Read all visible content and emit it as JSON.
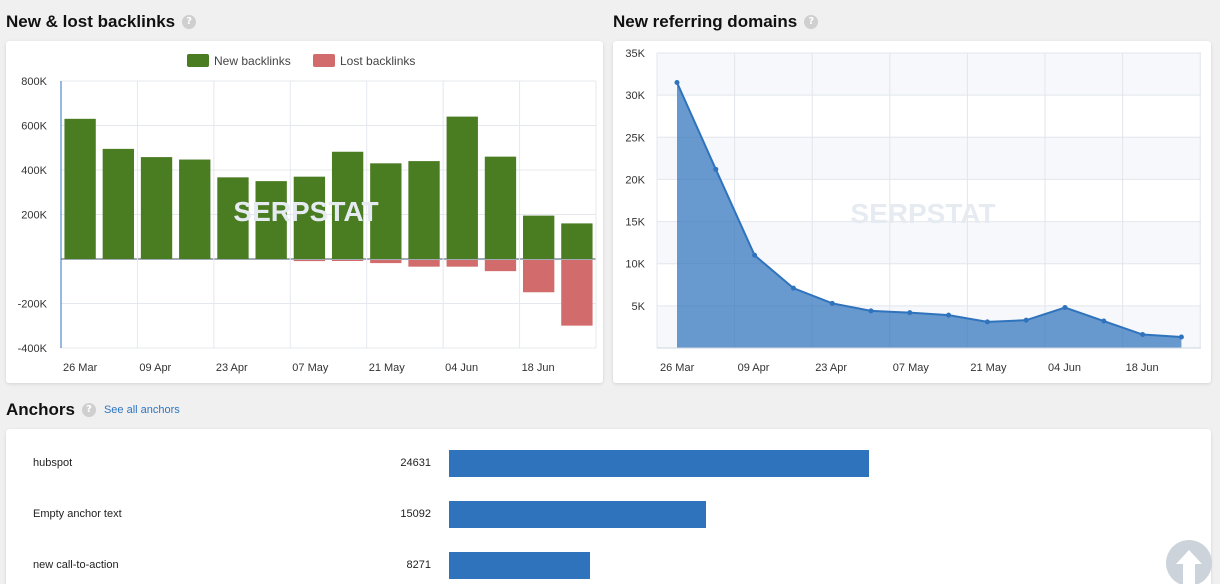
{
  "backlinks": {
    "title": "New & lost backlinks",
    "help_icon": "?",
    "legend_new": "New backlinks",
    "legend_lost": "Lost backlinks",
    "colors": {
      "new": "#4a7c22",
      "lost": "#d26b6b"
    }
  },
  "referring": {
    "title": "New referring domains",
    "help_icon": "?",
    "color": "#2f73bd"
  },
  "watermark": "SERPSTAT",
  "anchors": {
    "title": "Anchors",
    "help_icon": "?",
    "see_all": "See all anchors",
    "max": 24631,
    "items": [
      {
        "label": "hubspot",
        "count": "24631",
        "value": 24631
      },
      {
        "label": "Empty anchor text",
        "count": "15092",
        "value": 15092
      },
      {
        "label": "new call-to-action",
        "count": "8271",
        "value": 8271
      }
    ],
    "bar_color": "#2f73bd"
  },
  "scroll_top_icon": "arrow-up-icon",
  "chart_data": [
    {
      "type": "bar",
      "title": "New & lost backlinks",
      "categories": [
        "26 Mar",
        "",
        "09 Apr",
        "",
        "23 Apr",
        "",
        "07 May",
        "",
        "21 May",
        "",
        "04 Jun",
        "",
        "18 Jun",
        ""
      ],
      "tick_labels": [
        "26 Mar",
        "09 Apr",
        "23 Apr",
        "07 May",
        "21 May",
        "04 Jun",
        "18 Jun"
      ],
      "series": [
        {
          "name": "New backlinks",
          "values": [
            630000,
            495000,
            458000,
            447000,
            367000,
            350000,
            370000,
            482000,
            430000,
            440000,
            640000,
            460000,
            195000,
            160000
          ]
        },
        {
          "name": "Lost backlinks",
          "values": [
            0,
            0,
            0,
            0,
            0,
            0,
            -5000,
            -3000,
            -14000,
            -30000,
            -30000,
            -50000,
            -145000,
            -295000
          ]
        }
      ],
      "ylim": [
        -400000,
        800000
      ],
      "yticks": [
        800000,
        600000,
        400000,
        200000,
        0,
        -200000,
        -400000
      ],
      "ytick_labels": [
        "800K",
        "600K",
        "400K",
        "200K",
        "",
        "-200K",
        "-400K"
      ],
      "legend": "top",
      "grid": true
    },
    {
      "type": "area",
      "title": "New referring domains",
      "x": [
        "26 Mar",
        "",
        "09 Apr",
        "",
        "23 Apr",
        "",
        "07 May",
        "",
        "21 May",
        "",
        "04 Jun",
        "",
        "18 Jun",
        ""
      ],
      "tick_labels": [
        "26 Mar",
        "09 Apr",
        "23 Apr",
        "07 May",
        "21 May",
        "04 Jun",
        "18 Jun"
      ],
      "values": [
        31500,
        21200,
        11000,
        7100,
        5300,
        4400,
        4200,
        3900,
        3100,
        3300,
        4800,
        3200,
        1600,
        1300
      ],
      "ylim": [
        0,
        35000
      ],
      "yticks": [
        35000,
        30000,
        25000,
        20000,
        15000,
        10000,
        5000
      ],
      "ytick_labels": [
        "35K",
        "30K",
        "25K",
        "20K",
        "15K",
        "10K",
        "5K"
      ],
      "grid": true
    }
  ]
}
